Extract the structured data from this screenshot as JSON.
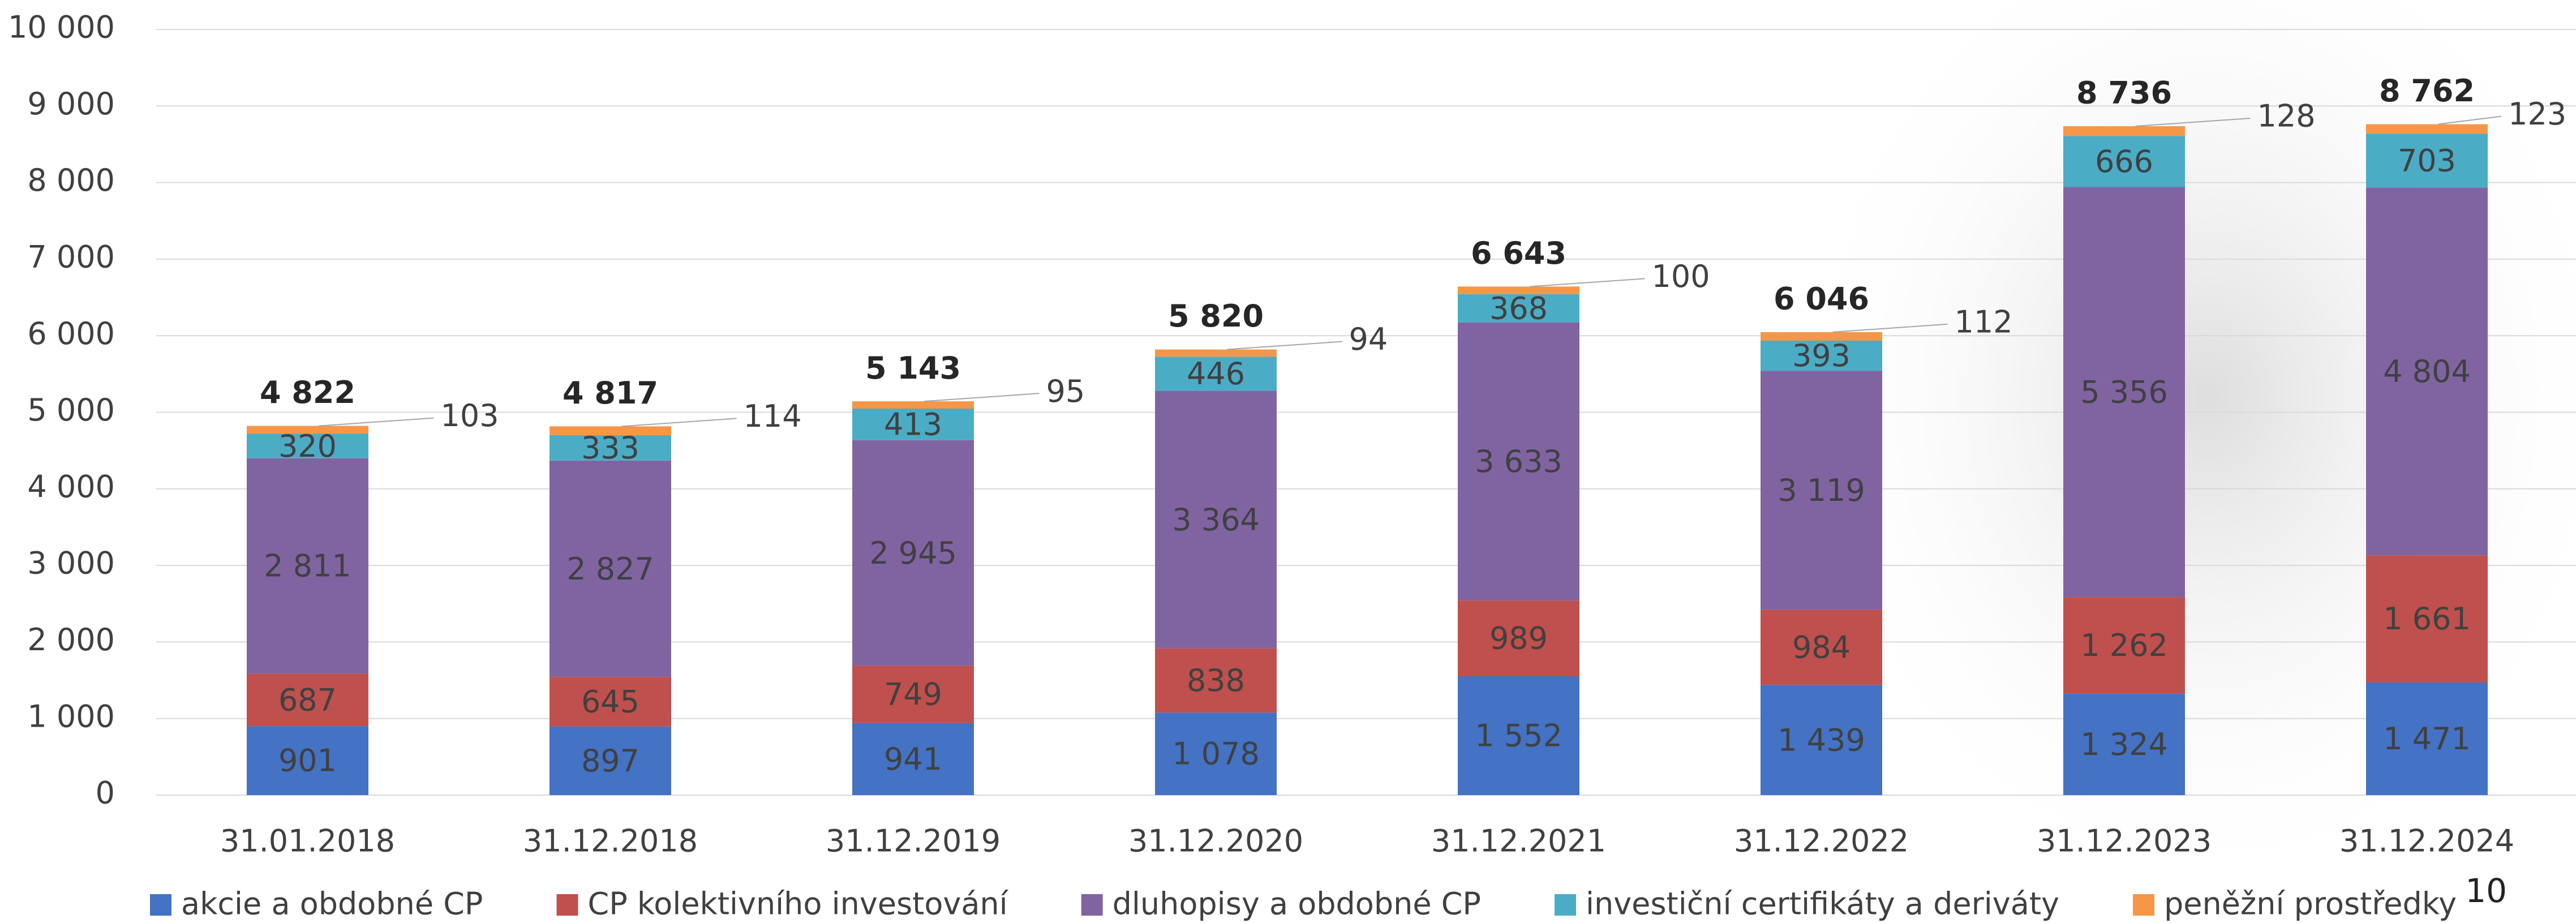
{
  "chart_data": {
    "type": "stacked-bar",
    "categories": [
      "31.01.2018",
      "31.12.2018",
      "31.12.2019",
      "31.12.2020",
      "31.12.2021",
      "31.12.2022",
      "31.12.2023",
      "31.12.2024"
    ],
    "series": [
      {
        "name": "akcie a obdobné CP",
        "color": "#4472c4",
        "values": [
          901,
          897,
          941,
          1078,
          1552,
          1439,
          1324,
          1471
        ],
        "value_labels": [
          "901",
          "897",
          "941",
          "1 078",
          "1 552",
          "1 439",
          "1 324",
          "1 471"
        ]
      },
      {
        "name": "CP kolektivního investování",
        "color": "#c0504d",
        "values": [
          687,
          645,
          749,
          838,
          989,
          984,
          1262,
          1661
        ],
        "value_labels": [
          "687",
          "645",
          "749",
          "838",
          "989",
          "984",
          "1 262",
          "1 661"
        ]
      },
      {
        "name": "dluhopisy a obdobné CP",
        "color": "#8064a2",
        "values": [
          2811,
          2827,
          2945,
          3364,
          3633,
          3119,
          5356,
          4804
        ],
        "value_labels": [
          "2 811",
          "2 827",
          "2 945",
          "3 364",
          "3 633",
          "3 119",
          "5 356",
          "4 804"
        ]
      },
      {
        "name": "investiční certifikáty a deriváty",
        "color": "#4bacc6",
        "values": [
          320,
          333,
          413,
          446,
          368,
          393,
          666,
          703
        ]
      },
      {
        "name": "peněžní prostředky",
        "color": "#f79646",
        "values": [
          103,
          114,
          95,
          94,
          100,
          112,
          128,
          123
        ]
      }
    ],
    "totals": {
      "values": [
        4822,
        4817,
        5143,
        5820,
        6643,
        6046,
        8736,
        8762
      ],
      "value_labels": [
        "4 822",
        "4 817",
        "5 143",
        "5 820",
        "6 643",
        "6 046",
        "8 736",
        "8 762"
      ]
    },
    "ylim": [
      0,
      10000
    ],
    "yticks": [
      0,
      {
        "value": 1000,
        "label": "1 000"
      },
      {
        "value": 2000,
        "label": "2 000"
      },
      {
        "value": 3000,
        "label": "3 000"
      },
      {
        "value": 4000,
        "label": "4 000"
      },
      {
        "value": 5000,
        "label": "5 000"
      },
      {
        "value": 6000,
        "label": "6 000"
      },
      {
        "value": 7000,
        "label": "7 000"
      },
      {
        "value": 8000,
        "label": "8 000"
      },
      {
        "value": 9000,
        "label": "9 000"
      },
      {
        "value": 10000,
        "label": "10 000"
      }
    ],
    "grid": true,
    "legend": "bottom"
  },
  "page_number": "10"
}
